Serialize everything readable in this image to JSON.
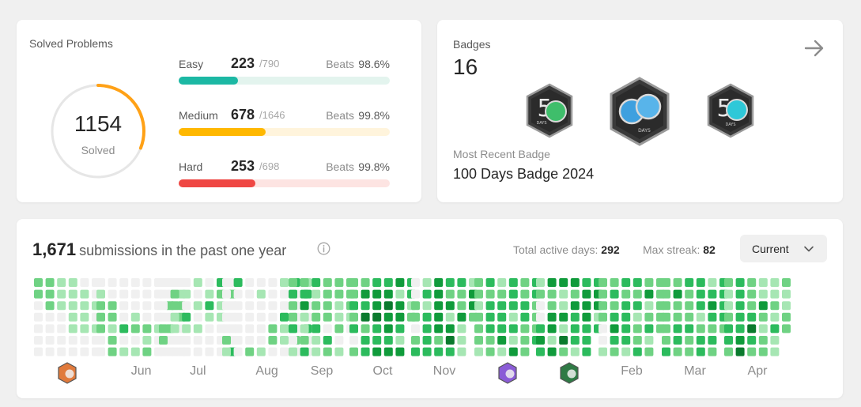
{
  "solved": {
    "title": "Solved Problems",
    "total": "1154",
    "total_label": "Solved",
    "ring_colors": {
      "track": "#e6e6e6",
      "arc": "#ffa116"
    },
    "ring_fraction": 0.31,
    "difficulties": [
      {
        "name": "Easy",
        "solved": "223",
        "total": "/790",
        "beats_label": "Beats",
        "beats": "98.6%",
        "fraction": 0.282,
        "color": "#1cb8a4",
        "track": "#e3f4ee"
      },
      {
        "name": "Medium",
        "solved": "678",
        "total": "/1646",
        "beats_label": "Beats",
        "beats": "99.8%",
        "fraction": 0.412,
        "color": "#ffb800",
        "track": "#fff4dc"
      },
      {
        "name": "Hard",
        "solved": "253",
        "total": "/698",
        "beats_label": "Beats",
        "beats": "99.8%",
        "fraction": 0.362,
        "color": "#ef4743",
        "track": "#fde4e2"
      }
    ]
  },
  "badges": {
    "label": "Badges",
    "count": "16",
    "arrow_icon": "arrow-right-icon",
    "icons": [
      {
        "name": "50-days-badge-icon",
        "text": "5",
        "sub": "DAYS",
        "accent": "#3fbe6b"
      },
      {
        "name": "100-days-badge-icon",
        "text": "",
        "sub": "DAYS",
        "accent": "#3ea0df"
      },
      {
        "name": "50-days-blue-badge-icon",
        "text": "5",
        "sub": "DAYS",
        "accent": "#2ec8d8"
      }
    ],
    "recent_label": "Most Recent Badge",
    "recent_name": "100 Days Badge 2024"
  },
  "submissions": {
    "count": "1,671",
    "text": "submissions in the past one year",
    "active_days_label": "Total active days:",
    "active_days": "292",
    "max_streak_label": "Max streak:",
    "max_streak": "82",
    "period": "Current",
    "levels": [
      "#f0f0f0",
      "#a6e6b3",
      "#6fd283",
      "#2cbb5d",
      "#109b3b",
      "#0a7a2d"
    ],
    "months": [
      {
        "label": "",
        "badge": "orange-badge-icon",
        "days": "22000002220000111000011111000111100001010000312220"
      },
      {
        "label": "Jun",
        "days": "01222000022122000030100012010000212000010000202000122000"
      },
      {
        "label": "Jul",
        "days": "00002200221100010310010101000131000321100002000030000"
      },
      {
        "label": "Aug",
        "days": "00000213000000000000201000010000220100311030000201300300001"
      },
      {
        "label": "Sep",
        "days": "2322301234112331223112222032221120122210"
      },
      {
        "label": "Oct",
        "days": "223230224352333445334345443441443143312"
      },
      {
        "label": "Nov",
        "days": "002202313133334444423324145332241111442"
      },
      {
        "label": "",
        "badge": "purple-badge-icon",
        "days": "22122213233322123334133313142233222332223"
      },
      {
        "label": "",
        "badge": "green-badge-icon",
        "days": "1200343422441441141524243331344433334413"
      },
      {
        "label": "Feb",
        "days": "2222001232343232333313231223241231222222"
      },
      {
        "label": "Mar",
        "days": "2222223242233232223223331233134323233332"
      },
      {
        "label": "Apr",
        "days": "2112332333334522235321142122112131121122"
      }
    ]
  }
}
